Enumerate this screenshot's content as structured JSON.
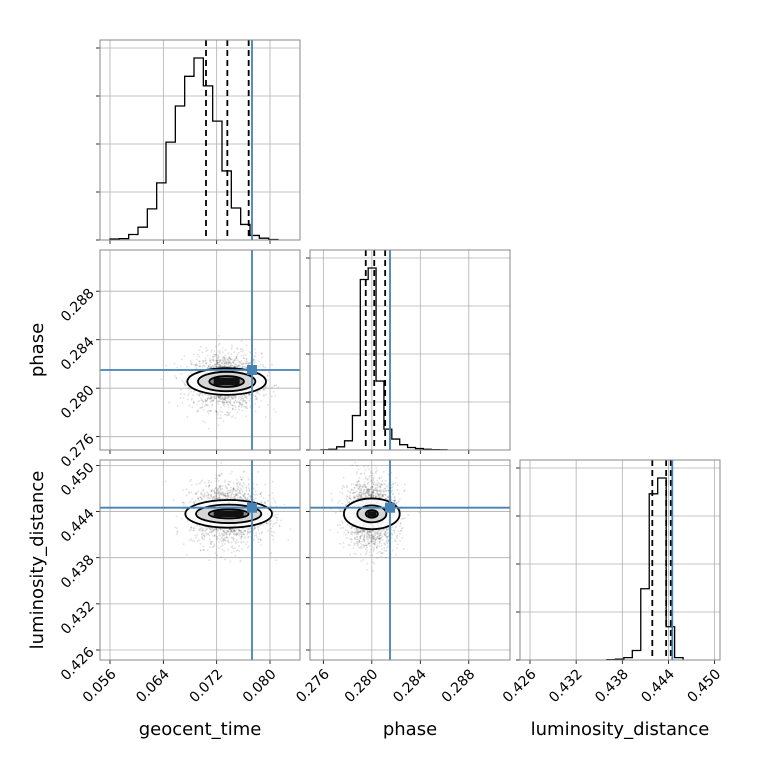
{
  "chart_data": {
    "type": "corner",
    "parameters": [
      "geocent_time",
      "phase",
      "luminosity_distance"
    ],
    "truths": {
      "geocent_time": 0.0773,
      "phase": 0.2815,
      "luminosity_distance": 0.4445
    },
    "truth_color": "#4682b4",
    "grid": true,
    "axes": {
      "geocent_time": {
        "range": [
          0.0545,
          0.0845
        ],
        "ticks": [
          "0.056",
          "0.064",
          "0.072",
          "0.080"
        ]
      },
      "phase": {
        "range": [
          0.2749,
          0.2914
        ],
        "ticks": [
          "0.276",
          "0.280",
          "0.284",
          "0.288"
        ]
      },
      "luminosity_distance": {
        "range": [
          0.4247,
          0.4507
        ],
        "ticks": [
          "0.426",
          "0.432",
          "0.438",
          "0.444",
          "0.450"
        ]
      }
    },
    "histograms": {
      "geocent_time": {
        "quantiles": [
          0.0704,
          0.0736,
          0.0768
        ],
        "bin_start": 0.056,
        "bin_width": 0.0014,
        "counts": [
          2,
          3,
          12,
          28,
          68,
          125,
          214,
          293,
          358,
          398,
          337,
          260,
          151,
          70,
          34,
          10,
          4,
          1
        ]
      },
      "phase": {
        "quantiles": [
          0.2795,
          0.2802,
          0.2811
        ],
        "bin_start": 0.2758,
        "bin_width": 0.00065,
        "counts": [
          1,
          4,
          18,
          52,
          195,
          965,
          1030,
          390,
          118,
          62,
          30,
          14,
          8,
          4,
          2,
          1
        ]
      },
      "luminosity_distance": {
        "quantiles": [
          0.4419,
          0.4437,
          0.4443
        ],
        "bin_start": 0.436,
        "bin_width": 0.0011,
        "counts": [
          2,
          5,
          15,
          60,
          450,
          1050,
          1150,
          210,
          15
        ]
      }
    },
    "scatter_2d": [
      {
        "x": "geocent_time",
        "y": "phase",
        "center": [
          0.0735,
          0.28055
        ],
        "spread": [
          0.0026,
          0.00115
        ],
        "contours": [
          {
            "half_width": 0.0059,
            "half_height": 0.0011
          },
          {
            "half_width": 0.0043,
            "half_height": 0.0008
          },
          {
            "half_width": 0.0026,
            "half_height": 0.00045
          }
        ]
      },
      {
        "x": "geocent_time",
        "y": "luminosity_distance",
        "center": [
          0.0738,
          0.4437
        ],
        "spread": [
          0.0028,
          0.002
        ],
        "contours": [
          {
            "half_width": 0.0065,
            "half_height": 0.0018
          },
          {
            "half_width": 0.0049,
            "half_height": 0.0012
          },
          {
            "half_width": 0.003,
            "half_height": 0.0006
          }
        ]
      },
      {
        "x": "phase",
        "y": "luminosity_distance",
        "center": [
          0.28,
          0.4437
        ],
        "spread": [
          0.0011,
          0.0022
        ],
        "contours": [
          {
            "half_width": 0.0023,
            "half_height": 0.002
          },
          {
            "half_width": 0.0012,
            "half_height": 0.0011
          },
          {
            "half_width": 0.0005,
            "half_height": 0.0005
          }
        ]
      }
    ]
  }
}
